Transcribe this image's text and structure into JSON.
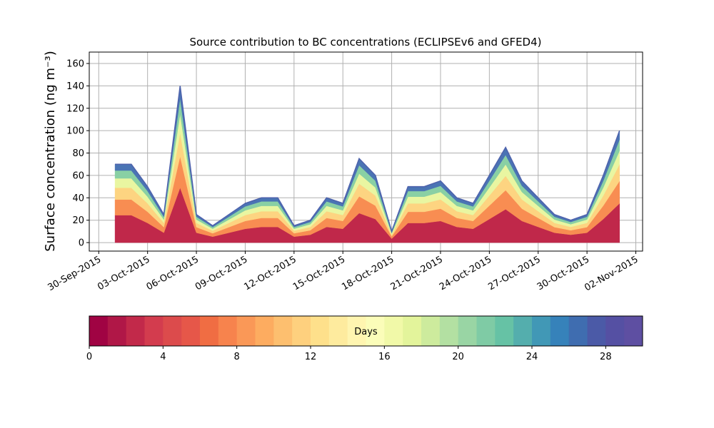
{
  "chart_data": {
    "type": "stacked_area",
    "title": "Source contribution to BC concentrations (ECLIPSEv6 and GFED4)",
    "y_label": "Surface concentration (ng m⁻³)",
    "x": [
      "01-Oct-2015",
      "02-Oct-2015",
      "03-Oct-2015",
      "04-Oct-2015",
      "05-Oct-2015",
      "06-Oct-2015",
      "07-Oct-2015",
      "08-Oct-2015",
      "09-Oct-2015",
      "10-Oct-2015",
      "11-Oct-2015",
      "12-Oct-2015",
      "13-Oct-2015",
      "14-Oct-2015",
      "15-Oct-2015",
      "16-Oct-2015",
      "17-Oct-2015",
      "18-Oct-2015",
      "19-Oct-2015",
      "20-Oct-2015",
      "21-Oct-2015",
      "22-Oct-2015",
      "23-Oct-2015",
      "24-Oct-2015",
      "25-Oct-2015",
      "26-Oct-2015",
      "27-Oct-2015",
      "28-Oct-2015",
      "29-Oct-2015",
      "30-Oct-2015",
      "31-Oct-2015",
      "01-Nov-2015"
    ],
    "series": [
      {
        "color": "#c0284a",
        "values": [
          24.5,
          24.5,
          17.5,
          8.8,
          49,
          8.8,
          5.3,
          8.8,
          12.3,
          14,
          14,
          5.3,
          7,
          14,
          12.3,
          26.3,
          21,
          3.5,
          17.5,
          17.5,
          19.3,
          14,
          12.3,
          21,
          29.8,
          19.3,
          14,
          8.8,
          7,
          8.8,
          21,
          35
        ]
      },
      {
        "color": "#f88d52",
        "values": [
          14,
          14,
          10,
          5,
          28,
          5,
          3,
          5,
          7,
          8,
          8,
          3,
          4,
          8,
          7,
          15,
          12,
          2,
          10,
          10,
          11,
          8,
          7,
          12,
          17,
          11,
          8,
          5,
          4,
          5,
          12,
          20
        ]
      },
      {
        "color": "#fdd481",
        "values": [
          10.5,
          10.5,
          7.5,
          3.8,
          21,
          3.8,
          2.3,
          3.8,
          5.3,
          6,
          6,
          2.3,
          3,
          6,
          5.3,
          11.3,
          9,
          1.5,
          7.5,
          7.5,
          8.3,
          6,
          5.3,
          9,
          12.8,
          8.3,
          6,
          3.8,
          3,
          3.8,
          9,
          15
        ]
      },
      {
        "color": "#e9f6a1",
        "values": [
          8.4,
          8.4,
          6,
          3,
          16.8,
          3,
          1.8,
          3,
          4.2,
          4.8,
          4.8,
          1.8,
          2.4,
          4.8,
          4.2,
          9,
          7.2,
          1.2,
          6,
          6,
          6.6,
          4.8,
          4.2,
          7.2,
          10.2,
          6.6,
          4.8,
          3,
          2.4,
          3,
          7.2,
          12
        ]
      },
      {
        "color": "#89d0a4",
        "values": [
          7,
          7,
          5,
          2.5,
          14,
          2.5,
          1.5,
          2.5,
          3.5,
          4,
          4,
          1.5,
          2,
          4,
          3.5,
          7.5,
          6,
          1,
          5,
          5,
          5.5,
          4,
          3.5,
          6,
          8.5,
          5.5,
          4,
          2.5,
          2,
          2.5,
          6,
          10
        ]
      },
      {
        "color": "#4a74b4",
        "values": [
          5.6,
          5.6,
          4,
          2,
          11.2,
          2,
          1.2,
          2,
          2.8,
          3.2,
          3.2,
          1.2,
          1.6,
          3.2,
          2.8,
          6,
          4.8,
          0.8,
          4,
          4,
          4.4,
          3.2,
          2.8,
          4.8,
          6.8,
          4.4,
          3.2,
          2,
          1.6,
          2,
          4.8,
          8
        ]
      }
    ],
    "xlim": [
      "29-Sep-2015 10:00",
      "02-Nov-2015 10:00"
    ],
    "xticks": [
      "30-Sep-2015",
      "03-Oct-2015",
      "06-Oct-2015",
      "09-Oct-2015",
      "12-Oct-2015",
      "15-Oct-2015",
      "18-Oct-2015",
      "21-Oct-2015",
      "24-Oct-2015",
      "27-Oct-2015",
      "30-Oct-2015",
      "02-Nov-2015"
    ],
    "ylim": [
      -7.6,
      170.2
    ],
    "yticks": [
      0,
      20,
      40,
      60,
      80,
      100,
      120,
      140,
      160
    ],
    "grid": true,
    "colorbar": {
      "label": "Days",
      "lim": [
        0,
        30
      ],
      "ticks": [
        0,
        4,
        8,
        12,
        16,
        20,
        24,
        28
      ],
      "colors": [
        "#a00343",
        "#b01747",
        "#c2294a",
        "#d33c4e",
        "#dc4b4c",
        "#e65749",
        "#f06d43",
        "#f7834d",
        "#fa9857",
        "#fdac60",
        "#fdbf6f",
        "#fed07e",
        "#fee08b",
        "#feeb9e",
        "#fff5b0",
        "#fbfdb9",
        "#f1f9a8",
        "#e3f49b",
        "#cdeb9d",
        "#b3e0a2",
        "#99d5a4",
        "#7fcba5",
        "#66c2a5",
        "#54aead",
        "#4198b6",
        "#3682ba",
        "#3f6db0",
        "#4b5aa7",
        "#5550a3",
        "#5e4fa2"
      ]
    }
  }
}
